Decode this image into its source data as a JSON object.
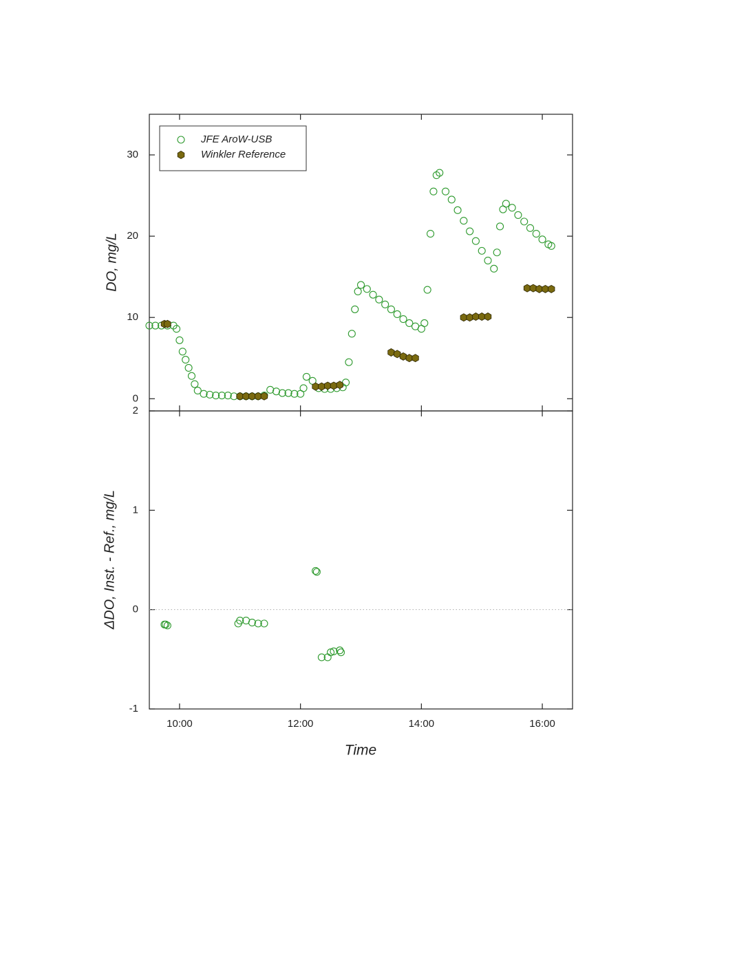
{
  "chart_data": [
    {
      "type": "scatter",
      "ylabel": "DO, mg/L",
      "xlim": [
        9.5,
        16.5
      ],
      "ylim": [
        -1.5,
        35
      ],
      "yticks": [
        0,
        10,
        20,
        30
      ],
      "legend": "upper left",
      "series": [
        {
          "name": "JFE AroW-USB",
          "color": "#2e9a2e",
          "marker": "open-circle",
          "x": [
            9.5,
            9.6,
            9.7,
            9.8,
            9.9,
            9.95,
            10.0,
            10.05,
            10.1,
            10.15,
            10.2,
            10.25,
            10.3,
            10.4,
            10.5,
            10.6,
            10.7,
            10.8,
            10.9,
            11.0,
            11.1,
            11.2,
            11.3,
            11.4,
            11.5,
            11.6,
            11.7,
            11.8,
            11.9,
            12.0,
            12.05,
            12.1,
            12.2,
            12.3,
            12.4,
            12.5,
            12.6,
            12.7,
            12.75,
            12.8,
            12.85,
            12.9,
            12.95,
            13.0,
            13.1,
            13.2,
            13.3,
            13.4,
            13.5,
            13.6,
            13.7,
            13.8,
            13.9,
            14.0,
            14.05,
            14.1,
            14.15,
            14.2,
            14.25,
            14.3,
            14.4,
            14.5,
            14.6,
            14.7,
            14.8,
            14.9,
            15.0,
            15.1,
            15.2,
            15.25,
            15.3,
            15.35,
            15.4,
            15.5,
            15.6,
            15.7,
            15.8,
            15.9,
            16.0,
            16.1,
            16.15
          ],
          "values": [
            9.0,
            9.0,
            9.0,
            9.0,
            9.0,
            8.6,
            7.2,
            5.8,
            4.8,
            3.8,
            2.8,
            1.8,
            1.0,
            0.6,
            0.5,
            0.4,
            0.4,
            0.4,
            0.3,
            0.3,
            0.3,
            0.3,
            0.3,
            0.4,
            1.1,
            0.9,
            0.7,
            0.7,
            0.6,
            0.6,
            1.3,
            2.7,
            2.2,
            1.3,
            1.2,
            1.2,
            1.3,
            1.4,
            2.0,
            4.5,
            8.0,
            11.0,
            13.2,
            14.0,
            13.5,
            12.8,
            12.2,
            11.6,
            11.0,
            10.4,
            9.8,
            9.3,
            8.9,
            8.6,
            9.3,
            13.4,
            20.3,
            25.5,
            27.5,
            27.8,
            25.5,
            24.5,
            23.2,
            21.9,
            20.6,
            19.4,
            18.2,
            17.0,
            16.0,
            18.0,
            21.2,
            23.3,
            24.0,
            23.5,
            22.6,
            21.8,
            21.0,
            20.3,
            19.6,
            19.0,
            18.8
          ]
        },
        {
          "name": "Winkler Reference",
          "color": "#7a6a10",
          "marker": "hexagon",
          "x": [
            9.75,
            9.8,
            11.0,
            11.1,
            11.2,
            11.3,
            11.4,
            12.25,
            12.35,
            12.45,
            12.55,
            12.65,
            13.5,
            13.6,
            13.7,
            13.8,
            13.9,
            14.7,
            14.8,
            14.9,
            15.0,
            15.1,
            15.75,
            15.85,
            15.95,
            16.05,
            16.15
          ],
          "values": [
            9.2,
            9.2,
            0.3,
            0.3,
            0.3,
            0.3,
            0.3,
            1.5,
            1.5,
            1.6,
            1.6,
            1.7,
            5.7,
            5.5,
            5.2,
            5.0,
            5.0,
            10.0,
            10.0,
            10.1,
            10.1,
            10.1,
            13.6,
            13.6,
            13.5,
            13.5,
            13.5
          ]
        }
      ]
    },
    {
      "type": "scatter",
      "ylabel": "ΔDO, Inst. - Ref., mg/L",
      "xlabel": "Time",
      "xlim": [
        9.5,
        16.5
      ],
      "ylim": [
        -1,
        2
      ],
      "yticks": [
        -1,
        0,
        1,
        2
      ],
      "xticks": [
        {
          "value": 10,
          "label": "10:00"
        },
        {
          "value": 12,
          "label": "12:00"
        },
        {
          "value": 14,
          "label": "14:00"
        },
        {
          "value": 16,
          "label": "16:00"
        }
      ],
      "reference_line": 0,
      "series": [
        {
          "color": "#2e9a2e",
          "marker": "open-circle",
          "x": [
            9.75,
            9.77,
            9.8,
            10.97,
            11.0,
            11.1,
            11.2,
            11.3,
            11.4,
            12.25,
            12.27,
            12.35,
            12.45,
            12.5,
            12.55,
            12.65,
            12.67
          ],
          "values": [
            -0.15,
            -0.15,
            -0.16,
            -0.14,
            -0.11,
            -0.11,
            -0.13,
            -0.14,
            -0.14,
            0.39,
            0.38,
            -0.48,
            -0.48,
            -0.43,
            -0.42,
            -0.41,
            -0.43
          ]
        }
      ]
    }
  ]
}
